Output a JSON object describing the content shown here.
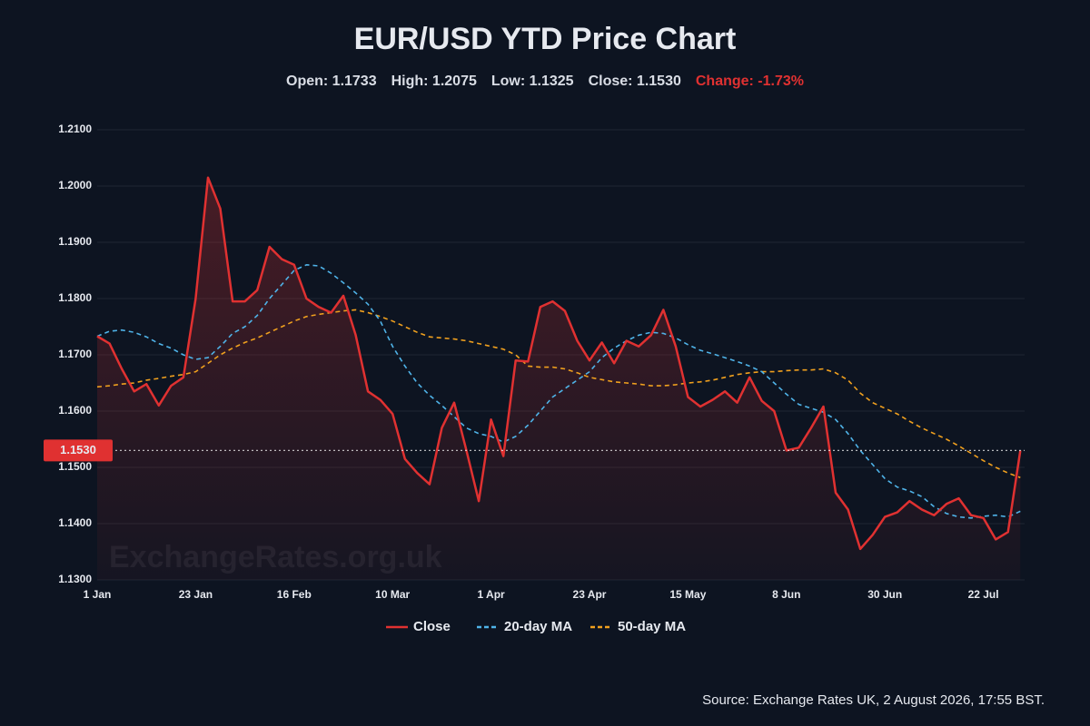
{
  "chart_data": {
    "type": "line",
    "title": "EUR/USD YTD Price Chart",
    "stats": [
      "Open: 1.1733",
      "High: 1.2075",
      "Low: 1.1325",
      "Close: 1.1530"
    ],
    "change": "Change: -1.73%",
    "change_color": "#e03131",
    "watermark": "ExchangeRates.org.uk",
    "source": "Source: Exchange Rates UK, 2 August 2026, 17:55 BST.",
    "last_price": {
      "value": 1.153,
      "label": "1.1530"
    },
    "categories": [
      "1 Jan",
      null,
      null,
      null,
      null,
      null,
      null,
      null,
      "23 Jan",
      null,
      null,
      null,
      null,
      null,
      null,
      null,
      "16 Feb",
      null,
      null,
      null,
      null,
      null,
      null,
      null,
      "10 Mar",
      null,
      null,
      null,
      null,
      null,
      null,
      null,
      "1 Apr",
      null,
      null,
      null,
      null,
      null,
      null,
      null,
      "23 Apr",
      null,
      null,
      null,
      null,
      null,
      null,
      null,
      "15 May",
      null,
      null,
      null,
      null,
      null,
      null,
      null,
      "8 Jun",
      null,
      null,
      null,
      null,
      null,
      null,
      null,
      "30 Jun",
      null,
      null,
      null,
      null,
      null,
      null,
      null,
      "22 Jul",
      null,
      null,
      null
    ],
    "series": [
      {
        "name": "Close",
        "color": "#e03131",
        "width": 2.5,
        "dashed": false,
        "fill": true,
        "values": [
          1.1733,
          1.172,
          1.1675,
          1.1635,
          1.1648,
          1.161,
          1.1645,
          1.166,
          1.18,
          1.2015,
          1.196,
          1.1795,
          1.1795,
          1.1815,
          1.1892,
          1.187,
          1.186,
          1.18,
          1.1785,
          1.1775,
          1.1805,
          1.1735,
          1.1635,
          1.162,
          1.1595,
          1.1515,
          1.149,
          1.147,
          1.157,
          1.1615,
          1.153,
          1.144,
          1.1585,
          1.152,
          1.169,
          1.1688,
          1.1785,
          1.1795,
          1.1778,
          1.1725,
          1.169,
          1.1722,
          1.1685,
          1.1725,
          1.1715,
          1.1735,
          1.178,
          1.1715,
          1.1625,
          1.1608,
          1.162,
          1.1635,
          1.1615,
          1.166,
          1.1618,
          1.16,
          1.153,
          1.1535,
          1.157,
          1.1608,
          1.1455,
          1.1425,
          1.1355,
          1.138,
          1.1412,
          1.142,
          1.144,
          1.1425,
          1.1415,
          1.1435,
          1.1445,
          1.1415,
          1.141,
          1.1372,
          1.1385,
          1.153
        ]
      },
      {
        "name": "20-day MA",
        "color": "#4fb3e8",
        "width": 1.6,
        "dashed": true,
        "fill": false,
        "values": [
          1.1733,
          1.1742,
          1.1744,
          1.174,
          1.1732,
          1.172,
          1.1712,
          1.17,
          1.1692,
          1.1695,
          1.1715,
          1.1738,
          1.175,
          1.177,
          1.18,
          1.1825,
          1.185,
          1.186,
          1.1858,
          1.1845,
          1.1828,
          1.181,
          1.179,
          1.176,
          1.1715,
          1.168,
          1.165,
          1.1628,
          1.161,
          1.159,
          1.157,
          1.156,
          1.1555,
          1.1545,
          1.1555,
          1.1575,
          1.16,
          1.1625,
          1.164,
          1.1655,
          1.167,
          1.1695,
          1.1712,
          1.1725,
          1.1735,
          1.174,
          1.1738,
          1.173,
          1.1718,
          1.1708,
          1.1702,
          1.1695,
          1.1688,
          1.168,
          1.167,
          1.165,
          1.163,
          1.1612,
          1.1605,
          1.1598,
          1.1585,
          1.156,
          1.153,
          1.1505,
          1.148,
          1.1465,
          1.1458,
          1.1448,
          1.143,
          1.1418,
          1.1412,
          1.141,
          1.1413,
          1.1415,
          1.1412,
          1.1422
        ]
      },
      {
        "name": "50-day MA",
        "color": "#f0a01e",
        "width": 1.6,
        "dashed": true,
        "fill": false,
        "values": [
          1.1643,
          1.1645,
          1.1648,
          1.165,
          1.1655,
          1.1658,
          1.1662,
          1.1665,
          1.167,
          1.1685,
          1.17,
          1.1712,
          1.1722,
          1.173,
          1.174,
          1.175,
          1.176,
          1.1768,
          1.1772,
          1.1775,
          1.1778,
          1.178,
          1.1775,
          1.1768,
          1.176,
          1.175,
          1.174,
          1.1732,
          1.173,
          1.1728,
          1.1725,
          1.172,
          1.1715,
          1.171,
          1.17,
          1.168,
          1.1678,
          1.1678,
          1.1675,
          1.1668,
          1.166,
          1.1656,
          1.1652,
          1.165,
          1.1648,
          1.1645,
          1.1645,
          1.1647,
          1.165,
          1.1652,
          1.1655,
          1.166,
          1.1665,
          1.1668,
          1.167,
          1.167,
          1.1672,
          1.1673,
          1.1673,
          1.1675,
          1.1668,
          1.1655,
          1.1632,
          1.1615,
          1.1605,
          1.1595,
          1.1582,
          1.157,
          1.156,
          1.155,
          1.1538,
          1.1525,
          1.1512,
          1.15,
          1.149,
          1.1482
        ]
      }
    ],
    "ylim": [
      1.13,
      1.21
    ],
    "yticks": [
      {
        "value": 1.13,
        "label": "1.1300"
      },
      {
        "value": 1.14,
        "label": "1.1400"
      },
      {
        "value": 1.15,
        "label": "1.1500"
      },
      {
        "value": 1.16,
        "label": "1.1600"
      },
      {
        "value": 1.17,
        "label": "1.1700"
      },
      {
        "value": 1.18,
        "label": "1.1800"
      },
      {
        "value": 1.19,
        "label": "1.1900"
      },
      {
        "value": 1.2,
        "label": "1.2000"
      },
      {
        "value": 1.21,
        "label": "1.2100"
      }
    ],
    "grid": true,
    "legend": "bottom"
  }
}
